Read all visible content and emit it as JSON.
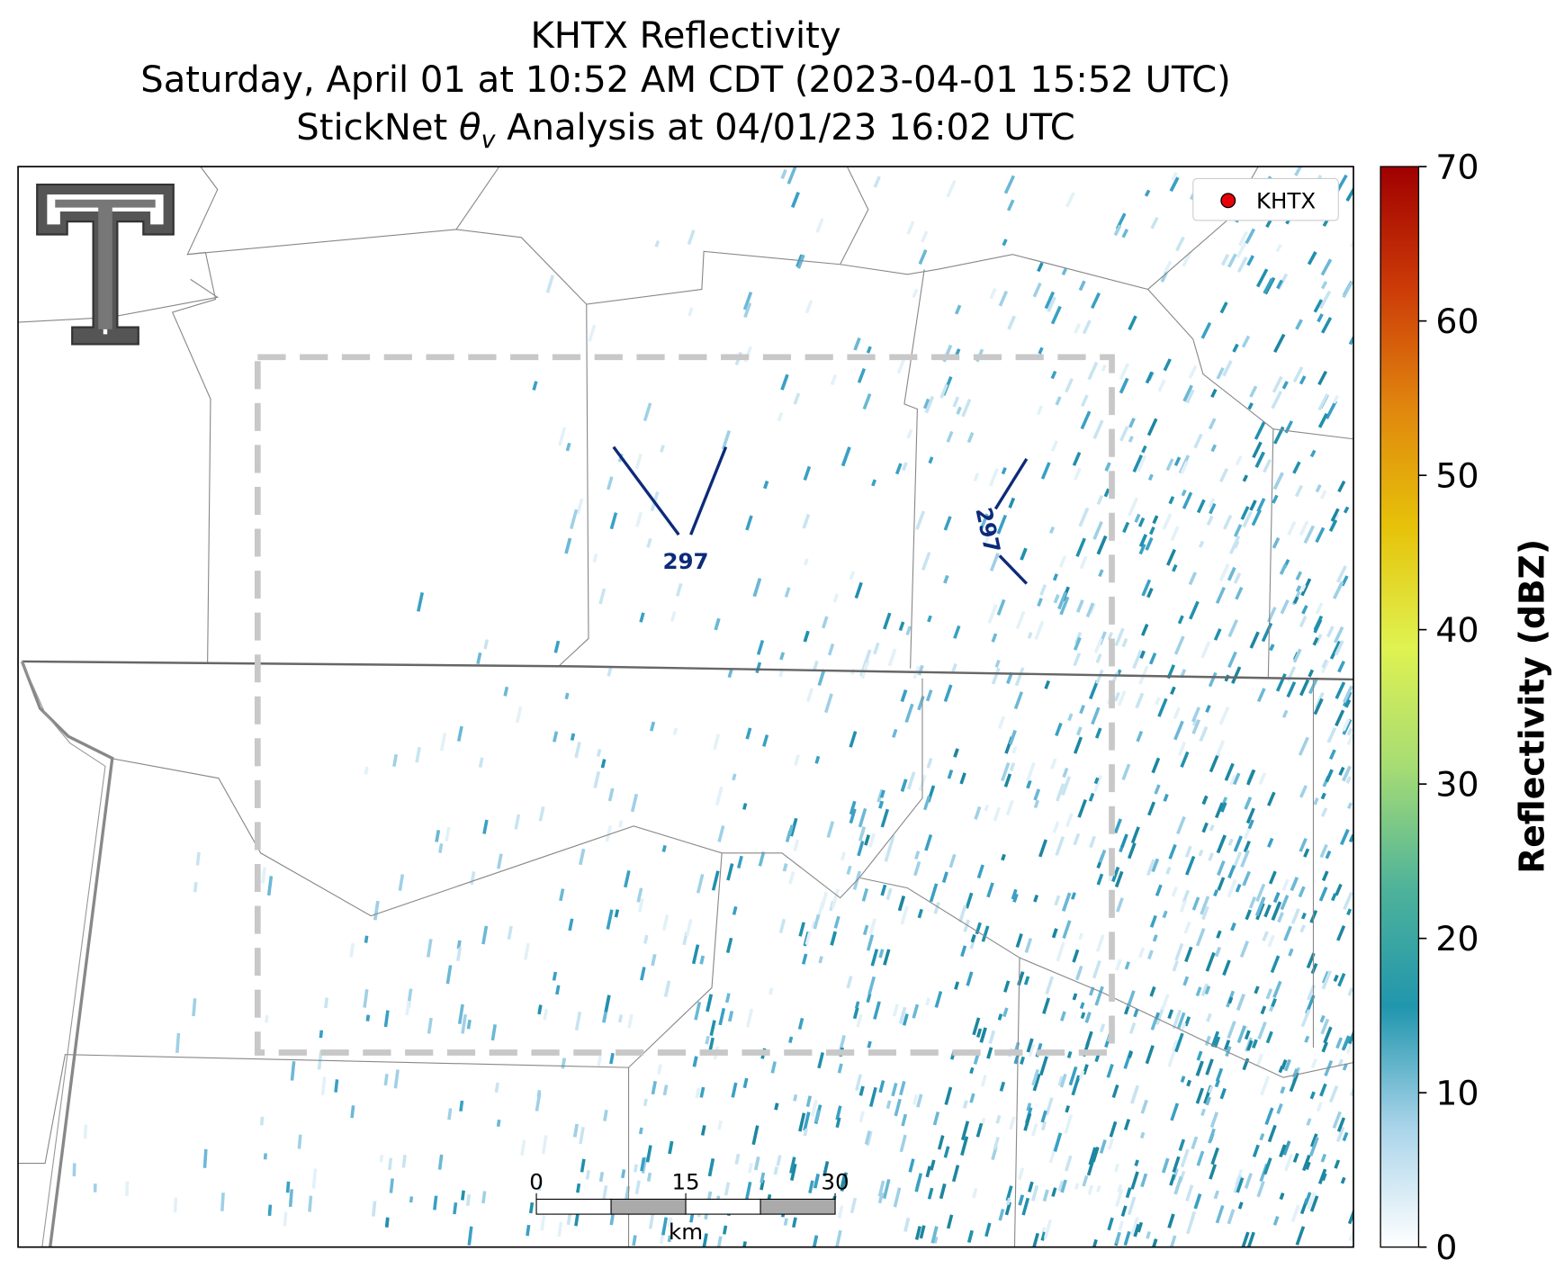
{
  "header": {
    "title_lines": [
      "KHTX Reflectivity",
      "Saturday, April 01 at 10:52 AM CDT (2023-04-01 15:52 UTC)"
    ],
    "analysis": {
      "pre": "StickNet",
      "symbol": "θ",
      "subscript": "v",
      "post": "Analysis at 04/01/23 16:02 UTC"
    }
  },
  "legend": {
    "label": "KHTX",
    "color": "#e8000b"
  },
  "contour_labels": [
    "297",
    "297"
  ],
  "scale_bar": {
    "ticks": [
      0,
      15,
      30
    ],
    "unit": "km"
  },
  "colorbar": {
    "label": "Reflectivity (dBZ)",
    "lim": [
      0,
      70
    ],
    "ticks": [
      0,
      10,
      20,
      30,
      40,
      50,
      60,
      70
    ],
    "colors": [
      "#ffffff",
      "#a9d4ea",
      "#2196ad",
      "#4fb39a",
      "#a6dc74",
      "#dff250",
      "#e6c20a",
      "#e0860e",
      "#cc3a08",
      "#a00000"
    ]
  }
}
